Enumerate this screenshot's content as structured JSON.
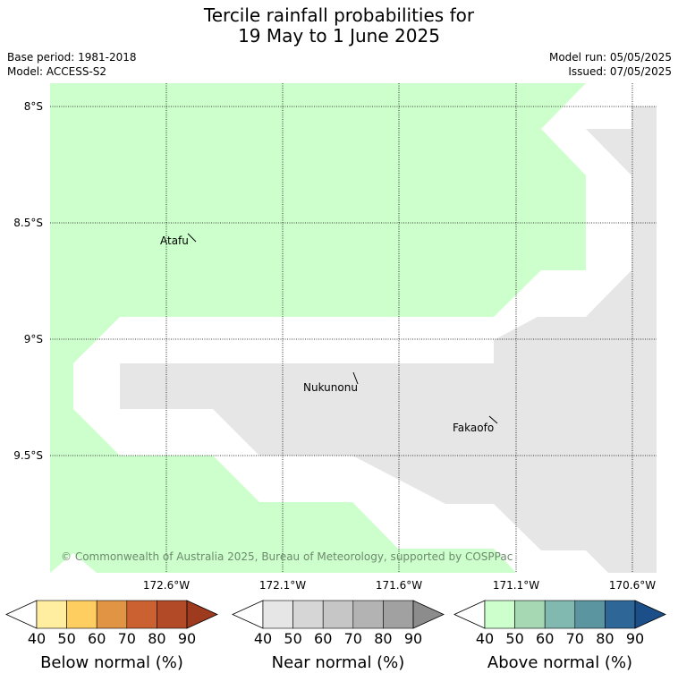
{
  "header": {
    "title_line1": "Tercile rainfall probabilities for",
    "title_line2": "19 May to 1 June 2025",
    "base_period": "Base period: 1981-2018",
    "model": "Model: ACCESS-S2",
    "model_run": "Model run: 05/05/2025",
    "issued": "Issued: 07/05/2025"
  },
  "map": {
    "lat_labels": [
      "8°S",
      "8.5°S",
      "9°S",
      "9.5°S"
    ],
    "lon_labels": [
      "172.6°W",
      "172.1°W",
      "171.6°W",
      "171.1°W",
      "170.6°W"
    ],
    "places": [
      {
        "name": "Atafu"
      },
      {
        "name": "Nukunonu"
      },
      {
        "name": "Fakaofo"
      }
    ],
    "copyright": "© Commonwealth of Australia 2025, Bureau of Meteorology, supported by COSPPac",
    "colors": {
      "above_normal_40": "#ccffcc",
      "near_normal_40": "#e6e6e6",
      "background": "#ffffff"
    }
  },
  "colorbars": [
    {
      "title": "Below normal (%)",
      "ticks": [
        "40",
        "50",
        "60",
        "70",
        "80",
        "90"
      ],
      "colors": [
        "#ffeea0",
        "#fecf60",
        "#e09444",
        "#cb6130",
        "#b24a28",
        "#9e3a1e"
      ]
    },
    {
      "title": "Near normal (%)",
      "ticks": [
        "40",
        "50",
        "60",
        "70",
        "80",
        "90"
      ],
      "colors": [
        "#e6e6e6",
        "#d6d6d6",
        "#c6c6c6",
        "#b3b3b3",
        "#a1a1a1",
        "#8c8c8c"
      ]
    },
    {
      "title": "Above normal (%)",
      "ticks": [
        "40",
        "50",
        "60",
        "70",
        "80",
        "90"
      ],
      "colors": [
        "#ccffcc",
        "#a6d8b4",
        "#81b8b0",
        "#5a95a0",
        "#2f6698",
        "#1c4f8a"
      ]
    }
  ]
}
